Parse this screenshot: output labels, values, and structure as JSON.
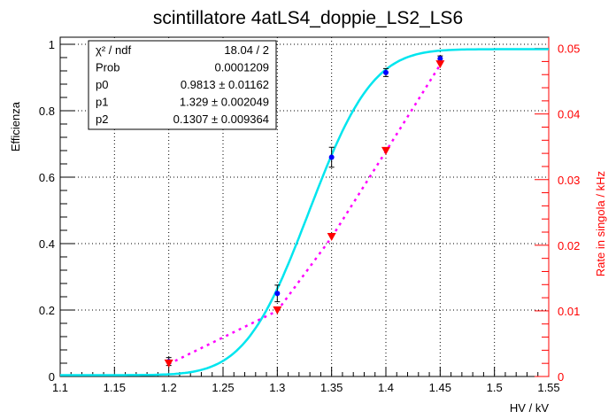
{
  "chart_data": {
    "type": "scatter",
    "title": "scintillatore 4atLS4_doppie_LS2_LS6",
    "xlabel": "HV / kV",
    "ylabel": "Efficienza",
    "y2label": "Rate in singola / kHz",
    "xlim": [
      1.1,
      1.55
    ],
    "ylim": [
      0,
      1.0
    ],
    "y2lim": [
      0,
      0.0517
    ],
    "grid": true,
    "xticks": [
      "1.1",
      "1.15",
      "1.2",
      "1.25",
      "1.3",
      "1.35",
      "1.4",
      "1.45",
      "1.5",
      "1.55"
    ],
    "yticks": [
      "0",
      "0.2",
      "0.4",
      "0.6",
      "0.8",
      "1"
    ],
    "y2ticks": [
      "0",
      "0.01",
      "0.02",
      "0.03",
      "0.04",
      "0.05"
    ],
    "series": [
      {
        "name": "Efficienza",
        "axis": "left",
        "color": "#0000ff",
        "marker": "circle",
        "x": [
          1.2,
          1.3,
          1.35,
          1.4,
          1.45
        ],
        "y": [
          0.045,
          0.25,
          0.66,
          0.915,
          0.957
        ],
        "yerr": [
          0.012,
          0.025,
          0.03,
          0.012,
          0.008
        ]
      },
      {
        "name": "Rate in singola",
        "axis": "right",
        "color": "#ff0000",
        "marker": "triangle-down",
        "line_color": "#ff00ff",
        "x": [
          1.2,
          1.3,
          1.35,
          1.4,
          1.45
        ],
        "y": [
          0.0019,
          0.01,
          0.0212,
          0.0343,
          0.0475
        ]
      }
    ],
    "fit": {
      "color": "#00e5ee",
      "function": "erf",
      "p0": 0.9813,
      "p1": 1.329,
      "p2": 0.1307
    },
    "stats": [
      {
        "label": "χ² / ndf",
        "value": "18.04 / 2"
      },
      {
        "label": "Prob",
        "value": "0.0001209"
      },
      {
        "label": "p0",
        "value": "0.9813 ±  0.01162"
      },
      {
        "label": "p1",
        "value": "1.329 ±  0.002049"
      },
      {
        "label": "p2",
        "value": "0.1307 ±  0.009364"
      }
    ]
  }
}
